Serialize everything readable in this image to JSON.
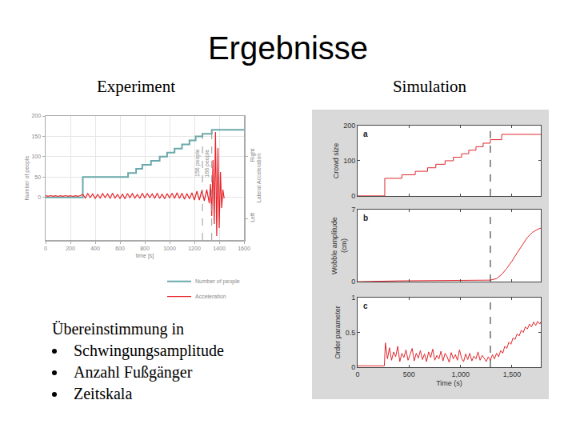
{
  "slide": {
    "title": "Ergebnisse",
    "left_heading": "Experiment",
    "right_heading": "Simulation",
    "text": {
      "intro": "Übereinstimmung in",
      "bullets": [
        "Schwingungsamplitude",
        "Anzahl Fußgänger",
        "Zeitskala"
      ]
    }
  },
  "chart_data": [
    {
      "type": "line",
      "xlabel": "time [s]",
      "ylabel": "Number of people",
      "y2label": "Lateral Acceleration",
      "xlim": [
        0,
        1600
      ],
      "xticks": [
        0,
        200,
        400,
        600,
        800,
        1000,
        1200,
        1400,
        1600
      ],
      "ylim": [
        -105,
        200
      ],
      "yticks": [
        0,
        50,
        100,
        150,
        200
      ],
      "y2lim": [
        -0.55,
        1
      ],
      "y2ticks": [
        {
          "value": 0.5,
          "label": "Right"
        },
        {
          "value": -0.28,
          "label": "Left"
        }
      ],
      "grid": true,
      "legend": "bottom right",
      "series": [
        {
          "name": "Number of people",
          "color": "#6aa9a9",
          "line_style": "step",
          "x": [
            0,
            300,
            665,
            730,
            780,
            850,
            920,
            980,
            1040,
            1100,
            1160,
            1210,
            1265,
            1340,
            1600
          ],
          "values": [
            0,
            50,
            60,
            70,
            80,
            90,
            100,
            110,
            120,
            130,
            140,
            150,
            156,
            166,
            166
          ]
        },
        {
          "name": "Acceleration",
          "color": "#e8232a",
          "line_style": "solid",
          "axis": "y2",
          "x": [
            0,
            20,
            40,
            60,
            80,
            100,
            120,
            140,
            160,
            180,
            200,
            220,
            240,
            260,
            280,
            300,
            320,
            340,
            360,
            380,
            400,
            420,
            440,
            460,
            480,
            500,
            520,
            540,
            560,
            580,
            600,
            620,
            640,
            660,
            680,
            700,
            720,
            740,
            760,
            780,
            800,
            820,
            840,
            860,
            880,
            900,
            920,
            940,
            960,
            980,
            1000,
            1020,
            1040,
            1060,
            1080,
            1100,
            1120,
            1140,
            1160,
            1180,
            1200,
            1220,
            1240,
            1260,
            1280,
            1300,
            1320,
            1330,
            1340,
            1350,
            1360,
            1370,
            1380,
            1390,
            1400,
            1410,
            1420,
            1430,
            1440
          ],
          "values": [
            0.004,
            -0.004,
            0.005,
            -0.003,
            0.004,
            -0.005,
            0.003,
            -0.004,
            0.005,
            -0.004,
            0.003,
            -0.005,
            0.004,
            -0.003,
            0.005,
            0.02,
            -0.025,
            0.03,
            -0.02,
            0.025,
            -0.03,
            0.02,
            -0.025,
            0.03,
            -0.02,
            0.025,
            -0.03,
            0.035,
            -0.025,
            0.02,
            -0.03,
            0.025,
            -0.035,
            0.03,
            -0.02,
            0.03,
            -0.025,
            0.02,
            -0.03,
            0.035,
            -0.025,
            0.03,
            -0.02,
            0.025,
            -0.03,
            0.035,
            -0.03,
            0.025,
            -0.035,
            0.03,
            -0.025,
            0.035,
            -0.03,
            0.04,
            -0.03,
            0.035,
            -0.04,
            0.03,
            -0.035,
            0.04,
            -0.05,
            0.06,
            -0.05,
            0.07,
            -0.06,
            0.08,
            -0.09,
            0.15,
            -0.25,
            0.45,
            -0.35,
            0.8,
            -0.5,
            0.6,
            -0.4,
            0.3,
            -0.15,
            0.08,
            -0.03
          ]
        }
      ],
      "annotations": [
        {
          "x": 1265,
          "y": 156,
          "text": "156 people"
        },
        {
          "x": 1340,
          "y": 166,
          "text": "166 people"
        }
      ]
    },
    {
      "type": "line",
      "label": "a",
      "ylabel": "Crowd size",
      "tick_labels": "y",
      "xlim": [
        0,
        1780
      ],
      "xticks": [
        0,
        500,
        {
          "value": 1000,
          "label": "1,000"
        },
        {
          "value": 1500,
          "label": "1,500"
        }
      ],
      "ylim": [
        0,
        200
      ],
      "yticks": [
        0,
        100,
        200
      ],
      "event_time": 1290,
      "series": [
        {
          "color": "#e0282e",
          "line_style": "step",
          "x": [
            0,
            264,
            430,
            560,
            680,
            760,
            850,
            930,
            1010,
            1080,
            1150,
            1220,
            1290,
            1400,
            1780
          ],
          "values": [
            0,
            50,
            60,
            70,
            80,
            90,
            100,
            110,
            120,
            130,
            140,
            150,
            160,
            175,
            175
          ]
        }
      ]
    },
    {
      "type": "line",
      "label": "b",
      "ylabel": [
        "Wobble amplitude",
        "(cm)"
      ],
      "tick_labels": "y",
      "xlim": [
        0,
        1780
      ],
      "xticks": [
        0,
        500,
        {
          "value": 1000,
          "label": "1,000"
        },
        {
          "value": 1500,
          "label": "1,500"
        }
      ],
      "ylim": [
        0,
        7
      ],
      "yticks": [
        0,
        7
      ],
      "event_time": 1290,
      "series": [
        {
          "color": "#e0282e",
          "line_style": "solid",
          "x": [
            0,
            260,
            264,
            400,
            600,
            800,
            1000,
            1200,
            1290,
            1350,
            1400,
            1450,
            1500,
            1550,
            1600,
            1650,
            1700,
            1750,
            1780
          ],
          "values": [
            0,
            0,
            0.05,
            0.08,
            0.1,
            0.08,
            0.1,
            0.12,
            0.15,
            0.3,
            0.7,
            1.3,
            2.0,
            2.8,
            3.6,
            4.3,
            4.8,
            5.1,
            5.2
          ]
        }
      ]
    },
    {
      "type": "line",
      "label": "c",
      "ylabel": "Order parameter",
      "xlabel": "Time (s)",
      "xlim": [
        0,
        1780
      ],
      "xticks": [
        0,
        500,
        {
          "value": 1000,
          "label": "1,000"
        },
        {
          "value": 1500,
          "label": "1,500"
        }
      ],
      "ylim": [
        0,
        1
      ],
      "yticks": [
        0,
        0.5,
        1
      ],
      "event_time": 1290,
      "series": [
        {
          "color": "#e0282e",
          "line_style": "solid",
          "x": [
            0,
            260,
            270,
            290,
            310,
            330,
            350,
            370,
            390,
            410,
            430,
            450,
            470,
            490,
            510,
            530,
            550,
            570,
            590,
            610,
            630,
            650,
            670,
            690,
            710,
            730,
            750,
            770,
            790,
            810,
            830,
            850,
            870,
            890,
            910,
            930,
            950,
            970,
            990,
            1010,
            1030,
            1050,
            1070,
            1090,
            1110,
            1130,
            1150,
            1170,
            1190,
            1210,
            1230,
            1250,
            1270,
            1290,
            1310,
            1330,
            1350,
            1370,
            1390,
            1410,
            1430,
            1450,
            1470,
            1490,
            1510,
            1530,
            1550,
            1570,
            1590,
            1610,
            1630,
            1650,
            1670,
            1690,
            1710,
            1730,
            1750,
            1770,
            1780
          ],
          "values": [
            0.02,
            0.02,
            0.35,
            0.12,
            0.28,
            0.1,
            0.22,
            0.15,
            0.3,
            0.08,
            0.2,
            0.14,
            0.25,
            0.1,
            0.18,
            0.27,
            0.09,
            0.2,
            0.13,
            0.24,
            0.11,
            0.19,
            0.08,
            0.22,
            0.14,
            0.26,
            0.1,
            0.17,
            0.12,
            0.23,
            0.09,
            0.2,
            0.15,
            0.07,
            0.21,
            0.12,
            0.18,
            0.1,
            0.25,
            0.13,
            0.08,
            0.19,
            0.11,
            0.2,
            0.09,
            0.16,
            0.12,
            0.22,
            0.1,
            0.17,
            0.13,
            0.08,
            0.15,
            0.1,
            0.18,
            0.12,
            0.2,
            0.15,
            0.24,
            0.2,
            0.3,
            0.27,
            0.36,
            0.33,
            0.42,
            0.4,
            0.48,
            0.45,
            0.53,
            0.5,
            0.58,
            0.55,
            0.62,
            0.58,
            0.65,
            0.6,
            0.66,
            0.62,
            0.65
          ]
        }
      ]
    }
  ]
}
